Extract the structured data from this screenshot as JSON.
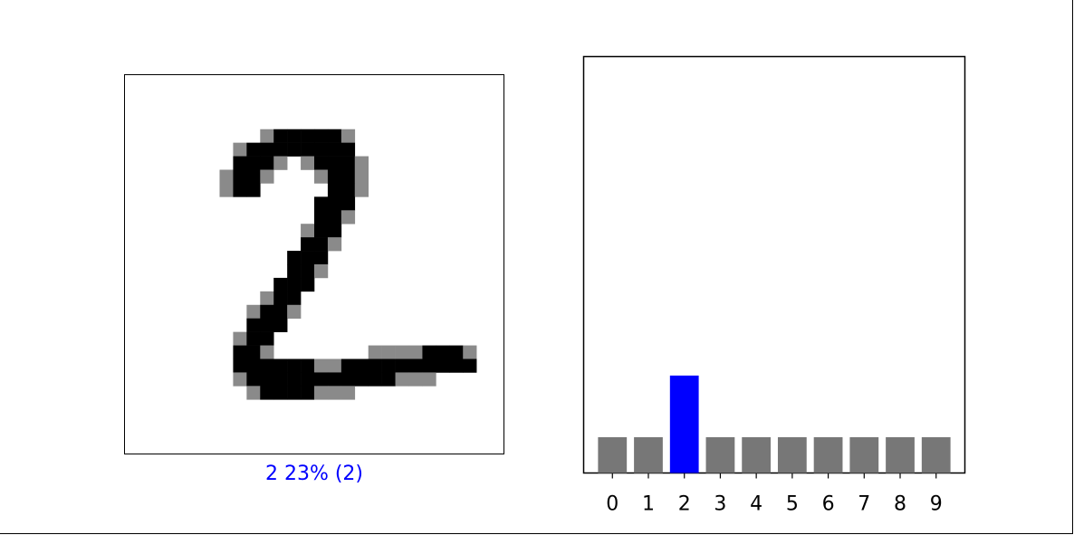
{
  "image_panel": {
    "caption": "2 23% (2)",
    "caption_color": "#0000ff",
    "image_alt": "handwritten digit",
    "image_rows": [
      "............................",
      "............................",
      "............................",
      "............................",
      "..........+#####+...........",
      "........+########...........",
      "........###+.+###+..........",
      ".......+##+...+##+..........",
      ".......+##.....##+..........",
      "..............###...........",
      "..............##+...........",
      ".............+##............",
      ".............##+............",
      "............###.............",
      "............##+.............",
      "...........###..............",
      "..........+##...............",
      ".........+##+...............",
      ".........###................",
      "........+##.................",
      "........##+.......++++###+..",
      "........######++##########..",
      "........+###########+++.....",
      ".........+####+++...........",
      "............................",
      "............................",
      "............................",
      "............................"
    ]
  },
  "chart_data": {
    "type": "bar",
    "categories": [
      "0",
      "1",
      "2",
      "3",
      "4",
      "5",
      "6",
      "7",
      "8",
      "9"
    ],
    "values": [
      0.086,
      0.086,
      0.234,
      0.086,
      0.086,
      0.086,
      0.086,
      0.086,
      0.086,
      0.086
    ],
    "ylim": [
      0,
      1
    ],
    "highlight_index": 2,
    "bar_color": "#777777",
    "highlight_color": "#0000ff",
    "title": "",
    "xlabel": "",
    "ylabel": ""
  }
}
